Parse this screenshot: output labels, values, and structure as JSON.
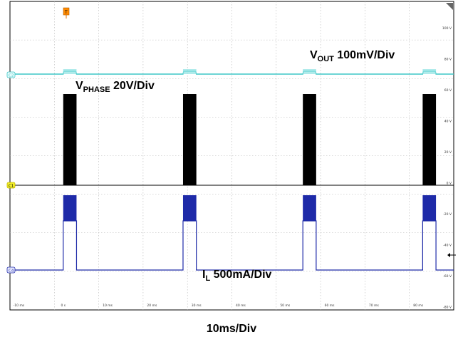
{
  "chart_data": {
    "type": "line",
    "grid": true,
    "x_unit": "ms",
    "x_ticks": [
      "-10 ms",
      "0 s",
      "10 ms",
      "20 ms",
      "30 ms",
      "40 ms",
      "50 ms",
      "60 ms",
      "70 ms",
      "80 ms"
    ],
    "y_ticks": [
      "100 V",
      "80 V",
      "60 V",
      "40 V",
      "20 V",
      "0 V",
      "-20 V",
      "-40 V",
      "-60 V",
      "-80 V"
    ],
    "xlim": [
      -12,
      88
    ],
    "timebase": "10ms/Div",
    "trigger_label": "T",
    "pulse_times_ms": [
      0,
      27,
      54,
      81
    ],
    "pulse_width_ms": 3,
    "channels": [
      {
        "marker": "C2",
        "color": "#3cc6c6",
        "name_main": "V",
        "name_sub": "OUT",
        "scale": " 100mV/Div"
      },
      {
        "marker": "C1",
        "color": "#000000",
        "name_main": "V",
        "name_sub": "PHASE",
        "scale": " 20V/Div"
      },
      {
        "marker": "C4",
        "color": "#1e2aa8",
        "name_main": "I",
        "name_sub": "L",
        "scale": " 500mA/Div"
      }
    ]
  }
}
